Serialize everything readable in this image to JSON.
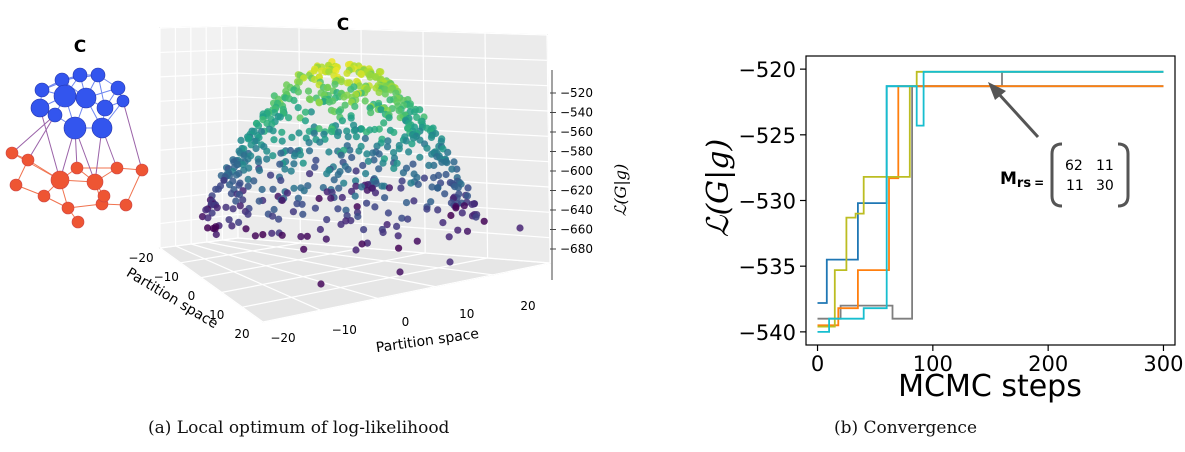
{
  "panel_a": {
    "caption": "(a) Local optimum of log-likelihood",
    "network_label": "C",
    "plot_title": "C",
    "zlabel": "ℒ(G|g)",
    "zticks": [
      -520,
      -540,
      -560,
      -580,
      -600,
      -620,
      -640,
      -660,
      -680
    ],
    "xlabel": "Partition space",
    "ylabel": "Partition space",
    "xticks": [
      -20,
      -10,
      0,
      10,
      20
    ],
    "yticks": [
      -20,
      -10,
      0,
      10,
      20
    ],
    "colors": {
      "blue_nodes": "#3355ee",
      "red_nodes": "#ee5533",
      "blue_edges": "#6f87f0",
      "red_edges": "#f0734f",
      "cross_edges": "#9a62a8"
    }
  },
  "panel_b": {
    "caption": "(b) Convergence",
    "matrix_label_main": "M",
    "matrix_label_sub": "rs",
    "matrix_eq": "=",
    "matrix": [
      [
        "62",
        "11"
      ],
      [
        "11",
        "30"
      ]
    ]
  },
  "chart_data": [
    {
      "type": "scatter",
      "title": "C",
      "zlabel": "ℒ(G|g)",
      "xlabel": "Partition space",
      "ylabel": "Partition space",
      "zlim": [
        -680,
        -510
      ],
      "xlim": [
        -25,
        25
      ],
      "ylim": [
        -25,
        25
      ],
      "colormap": "viridis",
      "grid": true,
      "note": "surface of points forming a dome with maximum near -510"
    },
    {
      "type": "line",
      "xlabel": "MCMC steps",
      "ylabel": "ℒ(G|g)",
      "xlim": [
        -10,
        310
      ],
      "ylim": [
        -541,
        -519
      ],
      "xticks": [
        0,
        100,
        200,
        300
      ],
      "yticks": [
        -520,
        -525,
        -530,
        -535,
        -540
      ],
      "series": [
        {
          "color": "#1f77b4",
          "x": [
            0,
            8,
            8,
            35,
            35,
            60,
            60,
            300
          ],
          "y": [
            -537.8,
            -537.8,
            -534.5,
            -534.5,
            -530.2,
            -530.2,
            -521.3,
            -521.3
          ]
        },
        {
          "color": "#7f7f7f",
          "x": [
            0,
            20,
            20,
            65,
            65,
            82,
            82,
            160,
            160,
            300
          ],
          "y": [
            -539.0,
            -539.0,
            -538.0,
            -538.0,
            -539.0,
            -539.0,
            -521.3,
            -521.3,
            -520.2,
            -520.2
          ]
        },
        {
          "color": "#ff7f0e",
          "x": [
            0,
            18,
            18,
            35,
            35,
            62,
            62,
            70,
            70,
            300
          ],
          "y": [
            -539.5,
            -539.5,
            -538.2,
            -538.2,
            -535.3,
            -535.3,
            -528.3,
            -528.3,
            -521.3,
            -521.3
          ]
        },
        {
          "color": "#bcbd22",
          "x": [
            0,
            15,
            15,
            25,
            25,
            33,
            33,
            40,
            40,
            80,
            80,
            86,
            86,
            300
          ],
          "y": [
            -539.6,
            -539.6,
            -535.3,
            -535.3,
            -531.3,
            -531.3,
            -531.0,
            -531.0,
            -528.2,
            -528.2,
            -521.3,
            -521.3,
            -520.2,
            -520.2
          ]
        },
        {
          "color": "#17becf",
          "x": [
            0,
            10,
            10,
            40,
            40,
            60,
            60,
            86,
            86,
            92,
            92,
            300
          ],
          "y": [
            -540.0,
            -540.0,
            -539.0,
            -539.0,
            -538.2,
            -538.2,
            -521.3,
            -521.3,
            -524.3,
            -524.3,
            -520.2,
            -520.2
          ]
        }
      ]
    }
  ]
}
